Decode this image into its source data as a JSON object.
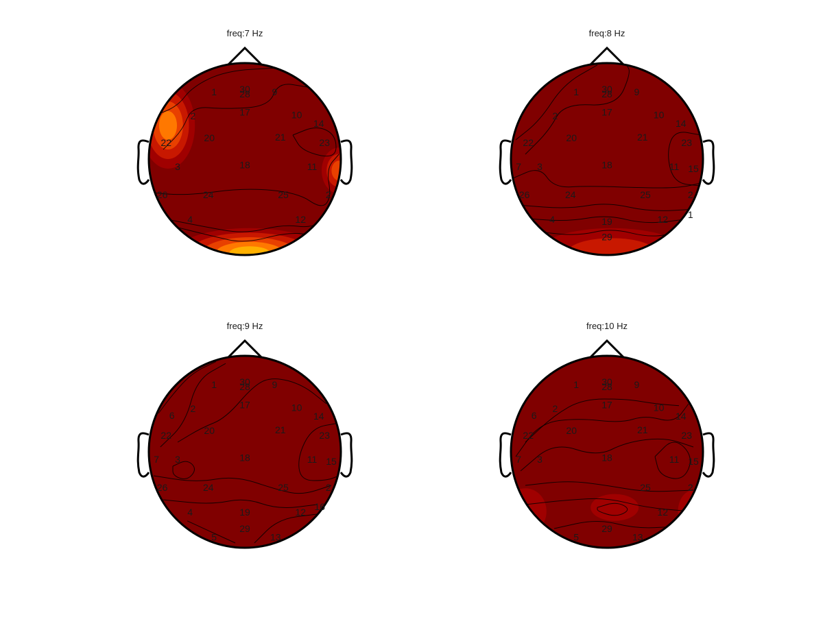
{
  "chart_data": [
    {
      "type": "heatmap",
      "title": "freq:7 Hz",
      "electrodes": [
        {
          "label": "1"
        },
        {
          "label": "30"
        },
        {
          "label": "28"
        },
        {
          "label": "9"
        },
        {
          "label": "2"
        },
        {
          "label": "17"
        },
        {
          "label": "10"
        },
        {
          "label": "14"
        },
        {
          "label": "22"
        },
        {
          "label": "20"
        },
        {
          "label": "21"
        },
        {
          "label": "23"
        },
        {
          "label": "3"
        },
        {
          "label": "18"
        },
        {
          "label": "11"
        },
        {
          "label": "26"
        },
        {
          "label": "24"
        },
        {
          "label": "25"
        },
        {
          "label": "2"
        },
        {
          "label": "4"
        },
        {
          "label": "12"
        }
      ],
      "hotspots": [
        {
          "region": "left-frontal",
          "level": 0.65
        },
        {
          "region": "right-temporal",
          "level": 0.45
        },
        {
          "region": "occipital",
          "level": 0.9
        }
      ]
    },
    {
      "type": "heatmap",
      "title": "freq:8 Hz",
      "electrodes": [
        {
          "label": "1"
        },
        {
          "label": "30"
        },
        {
          "label": "28"
        },
        {
          "label": "9"
        },
        {
          "label": "2"
        },
        {
          "label": "17"
        },
        {
          "label": "10"
        },
        {
          "label": "14"
        },
        {
          "label": "22"
        },
        {
          "label": "20"
        },
        {
          "label": "21"
        },
        {
          "label": "23"
        },
        {
          "label": "7"
        },
        {
          "label": "3"
        },
        {
          "label": "18"
        },
        {
          "label": "11"
        },
        {
          "label": "15"
        },
        {
          "label": "26"
        },
        {
          "label": "24"
        },
        {
          "label": "25"
        },
        {
          "label": "2"
        },
        {
          "label": "4"
        },
        {
          "label": "19"
        },
        {
          "label": "12"
        },
        {
          "label": "1"
        },
        {
          "label": "29"
        }
      ],
      "hotspots": [
        {
          "region": "occipital",
          "level": 0.35
        }
      ]
    },
    {
      "type": "heatmap",
      "title": "freq:9 Hz",
      "electrodes": [
        {
          "label": "1"
        },
        {
          "label": "30"
        },
        {
          "label": "28"
        },
        {
          "label": "9"
        },
        {
          "label": "6"
        },
        {
          "label": "2"
        },
        {
          "label": "17"
        },
        {
          "label": "10"
        },
        {
          "label": "14"
        },
        {
          "label": "22"
        },
        {
          "label": "20"
        },
        {
          "label": "21"
        },
        {
          "label": "23"
        },
        {
          "label": "7"
        },
        {
          "label": "3"
        },
        {
          "label": "18"
        },
        {
          "label": "11"
        },
        {
          "label": "15"
        },
        {
          "label": "26"
        },
        {
          "label": "24"
        },
        {
          "label": "25"
        },
        {
          "label": "2"
        },
        {
          "label": "4"
        },
        {
          "label": "19"
        },
        {
          "label": "12"
        },
        {
          "label": "16"
        },
        {
          "label": "5"
        },
        {
          "label": "29"
        },
        {
          "label": "13"
        }
      ],
      "hotspots": []
    },
    {
      "type": "heatmap",
      "title": "freq:10 Hz",
      "electrodes": [
        {
          "label": "1"
        },
        {
          "label": "30"
        },
        {
          "label": "28"
        },
        {
          "label": "9"
        },
        {
          "label": "17"
        },
        {
          "label": "6"
        },
        {
          "label": "2"
        },
        {
          "label": "10"
        },
        {
          "label": "14"
        },
        {
          "label": "22"
        },
        {
          "label": "20"
        },
        {
          "label": "21"
        },
        {
          "label": "23"
        },
        {
          "label": "7"
        },
        {
          "label": "3"
        },
        {
          "label": "18"
        },
        {
          "label": "11"
        },
        {
          "label": "15"
        },
        {
          "label": "25"
        },
        {
          "label": "2"
        },
        {
          "label": "12"
        },
        {
          "label": "5"
        },
        {
          "label": "29"
        },
        {
          "label": "13"
        }
      ],
      "hotspots": [
        {
          "region": "left-posterior",
          "level": 0.15
        },
        {
          "region": "center-posterior",
          "level": 0.12
        },
        {
          "region": "right-posterior",
          "level": 0.12
        }
      ]
    }
  ],
  "colors": {
    "background": "#ffffff",
    "base": "#800000",
    "colormap": [
      "#800000",
      "#a00000",
      "#c81800",
      "#e84000",
      "#ff7800",
      "#ffb000",
      "#ffe000"
    ],
    "outline": "#000000"
  }
}
